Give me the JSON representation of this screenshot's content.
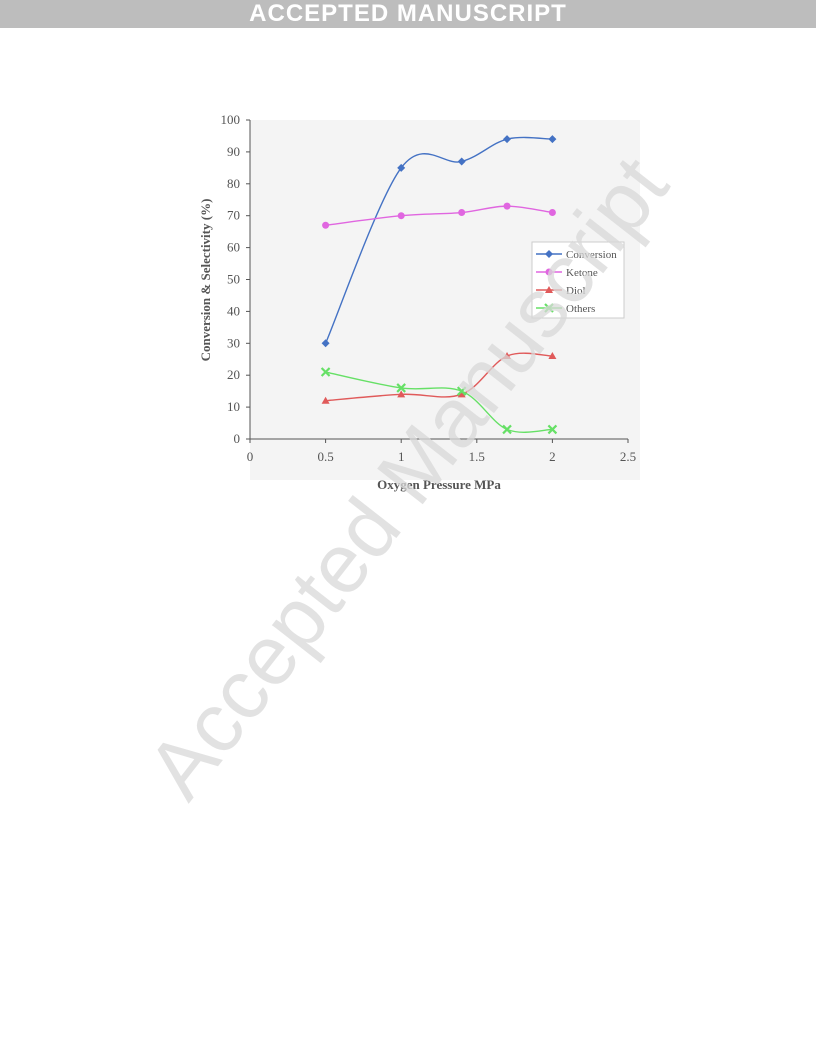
{
  "banner": {
    "text": "ACCEPTED MANUSCRIPT"
  },
  "watermark": {
    "text": "Accepted Manuscript"
  },
  "chart_data": {
    "type": "line",
    "xlabel": "Oxygen Pressure MPa",
    "ylabel": "Conversion & Selectivity (%)",
    "xlim": [
      0,
      2.5
    ],
    "ylim": [
      0,
      100
    ],
    "xticks": [
      "0",
      "0.5",
      "1",
      "1.5",
      "2",
      "2.5"
    ],
    "yticks": [
      "0",
      "10",
      "20",
      "30",
      "40",
      "50",
      "60",
      "70",
      "80",
      "90",
      "100"
    ],
    "legend_position": "right",
    "grid": false,
    "x": [
      0.5,
      1.0,
      1.4,
      1.7,
      2.0
    ],
    "series": [
      {
        "name": "Conversion",
        "values": [
          30,
          85,
          87,
          94,
          94
        ],
        "color": "#4472c4",
        "marker": "diamond"
      },
      {
        "name": "Ketone",
        "values": [
          67,
          70,
          71,
          73,
          71
        ],
        "color": "#e066e0",
        "marker": "circle"
      },
      {
        "name": "Diol",
        "values": [
          12,
          14,
          14,
          26,
          26
        ],
        "color": "#e05a5a",
        "marker": "triangle"
      },
      {
        "name": "Others",
        "values": [
          21,
          16,
          15,
          3,
          3
        ],
        "color": "#66e066",
        "marker": "x"
      }
    ]
  }
}
